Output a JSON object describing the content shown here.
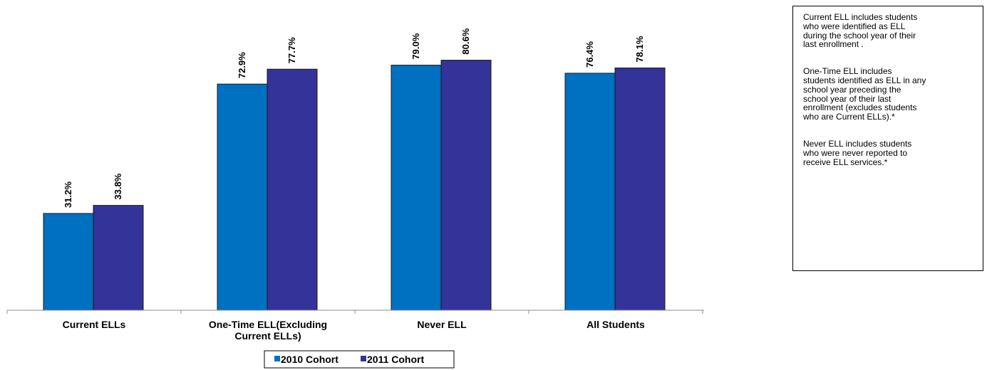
{
  "chart_data": {
    "type": "bar",
    "categories": [
      "Current ELLs",
      "One-Time ELL(Excluding Current ELLs)",
      "Never ELL",
      "All Students"
    ],
    "category_lines": [
      [
        "Current ELLs"
      ],
      [
        "One-Time ELL(Excluding",
        "Current ELLs)"
      ],
      [
        "Never ELL"
      ],
      [
        "All Students"
      ]
    ],
    "series": [
      {
        "name": "2010 Cohort",
        "color": "#0070c0",
        "values": [
          31.2,
          72.9,
          79.0,
          76.4
        ],
        "labels": [
          "31.2%",
          "72.9%",
          "79.0%",
          "76.4%"
        ]
      },
      {
        "name": "2011 Cohort",
        "color": "#333399",
        "values": [
          33.8,
          77.7,
          80.6,
          78.1
        ],
        "labels": [
          "33.8%",
          "77.7%",
          "80.6%",
          "78.1%"
        ]
      }
    ],
    "ylim": [
      0,
      100
    ],
    "grid": false,
    "legend_position": "bottom"
  },
  "notes": [
    "Current ELL includes students\nwho were identified as ELL\nduring the school year of their\nlast enrollment .",
    "One-Time ELL includes\nstudents identified as ELL in any\nschool year preceding the\nschool year of their last\nenrollment  (excludes students\nwho are Current ELLs).*",
    "Never ELL includes students\nwho were never reported to\nreceive ELL services.*"
  ]
}
